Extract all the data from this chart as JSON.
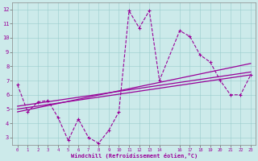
{
  "xlabel": "Windchill (Refroidissement éolien,°C)",
  "bg_color": "#cceaea",
  "line_color": "#990099",
  "x": [
    0,
    1,
    2,
    3,
    4,
    5,
    6,
    7,
    8,
    9,
    10,
    11,
    12,
    13,
    14,
    16,
    17,
    18,
    19,
    20,
    21,
    22,
    23
  ],
  "y_main": [
    6.7,
    4.8,
    5.5,
    5.6,
    4.4,
    2.8,
    4.3,
    3.0,
    2.6,
    3.5,
    4.8,
    11.9,
    10.7,
    11.9,
    7.0,
    10.5,
    10.1,
    8.8,
    8.3,
    7.0,
    6.0,
    6.0,
    7.4
  ],
  "y_trend1_start": 5.0,
  "y_trend1_end": 7.4,
  "y_trend2_start": 5.2,
  "y_trend2_end": 7.6,
  "y_trend3_start": 4.8,
  "y_trend3_end": 8.2,
  "ylim": [
    2.5,
    12.5
  ],
  "yticks": [
    3,
    4,
    5,
    6,
    7,
    8,
    9,
    10,
    11,
    12
  ],
  "xlim": [
    -0.5,
    23.5
  ],
  "xticks": [
    0,
    1,
    2,
    3,
    4,
    5,
    6,
    7,
    8,
    9,
    10,
    11,
    12,
    13,
    14,
    16,
    17,
    18,
    19,
    20,
    21,
    22,
    23
  ]
}
